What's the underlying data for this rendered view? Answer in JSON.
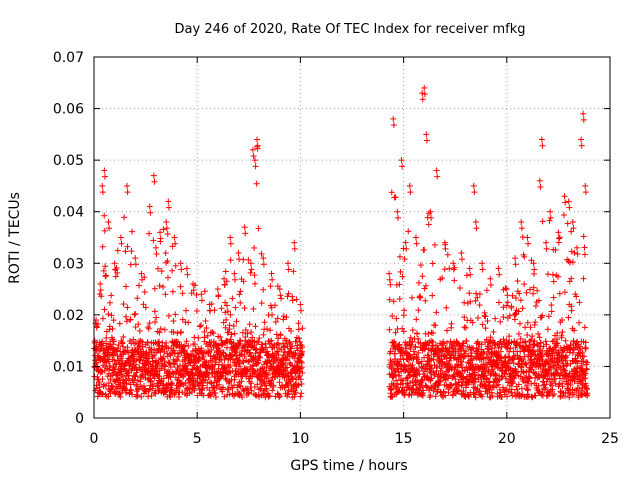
{
  "chart_data": {
    "type": "scatter",
    "title": "Day 246 of 2020, Rate Of TEC Index for receiver mfkg",
    "xlabel": "GPS time / hours",
    "ylabel": "ROTI / TECUs",
    "xlim": [
      0,
      25
    ],
    "ylim": [
      0,
      0.07
    ],
    "x_ticks": [
      "0",
      "5",
      "10",
      "15",
      "20",
      "25"
    ],
    "y_ticks": [
      "0",
      "0.01",
      "0.02",
      "0.03",
      "0.04",
      "0.05",
      "0.06",
      "0.07"
    ],
    "grid": true,
    "marker": "plus",
    "colors": {
      "points": "#ff0000",
      "grid": "#a0a0a0",
      "axes": "#000000"
    },
    "data_gap_hours": [
      10.1,
      14.3
    ],
    "segments": [
      {
        "x_range": [
          0,
          10.1
        ],
        "x": [
          0.1,
          0.3,
          0.4,
          0.5,
          0.7,
          1.0,
          1.3,
          1.6,
          2.0,
          2.3,
          2.7,
          2.9,
          3.0,
          3.2,
          3.5,
          3.6,
          3.9,
          4.2,
          4.5,
          4.8,
          5.2,
          5.6,
          6.0,
          6.3,
          6.6,
          6.8,
          7.0,
          7.3,
          7.6,
          7.7,
          7.8,
          7.9,
          8.2,
          8.6,
          9.0,
          9.4,
          9.7,
          10.0
        ],
        "y": [
          0.019,
          0.026,
          0.045,
          0.048,
          0.038,
          0.03,
          0.035,
          0.045,
          0.031,
          0.028,
          0.041,
          0.047,
          0.033,
          0.036,
          0.038,
          0.042,
          0.035,
          0.03,
          0.029,
          0.026,
          0.024,
          0.022,
          0.025,
          0.027,
          0.035,
          0.028,
          0.032,
          0.037,
          0.03,
          0.052,
          0.05,
          0.054,
          0.031,
          0.028,
          0.025,
          0.03,
          0.034,
          0.022
        ]
      },
      {
        "x_range": [
          14.3,
          23.9
        ],
        "x": [
          14.3,
          14.5,
          14.7,
          14.9,
          15.1,
          15.3,
          15.6,
          15.9,
          16.0,
          16.1,
          16.3,
          16.6,
          17.0,
          17.4,
          17.8,
          18.2,
          18.4,
          18.5,
          18.8,
          19.2,
          19.6,
          20.0,
          20.4,
          20.7,
          21.0,
          21.3,
          21.6,
          21.7,
          21.9,
          22.1,
          22.5,
          22.8,
          23.0,
          23.2,
          23.4,
          23.6,
          23.7,
          23.8
        ],
        "y": [
          0.028,
          0.058,
          0.04,
          0.05,
          0.034,
          0.045,
          0.035,
          0.063,
          0.064,
          0.055,
          0.04,
          0.048,
          0.034,
          0.03,
          0.032,
          0.029,
          0.045,
          0.038,
          0.03,
          0.027,
          0.029,
          0.025,
          0.031,
          0.038,
          0.035,
          0.03,
          0.046,
          0.054,
          0.034,
          0.04,
          0.036,
          0.043,
          0.042,
          0.038,
          0.033,
          0.054,
          0.059,
          0.045
        ]
      }
    ]
  }
}
